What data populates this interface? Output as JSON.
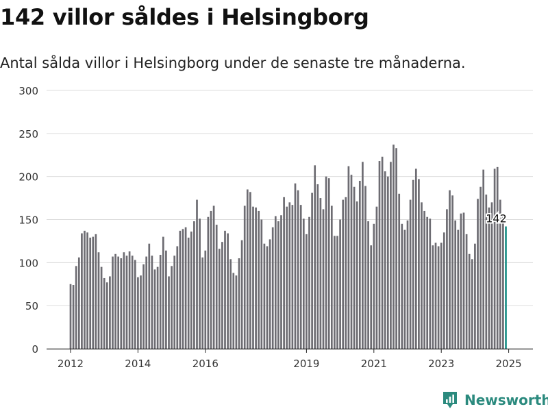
{
  "title": "142 villor såldes i Helsingborg",
  "subtitle": "Antal sålda villor i Helsingborg under de senaste tre månaderna.",
  "brand": {
    "name": "Newsworthy",
    "icon": "bar-chart-pin-icon",
    "color": "#2b8a7e"
  },
  "chart_data": {
    "type": "bar",
    "title": "142 villor såldes i Helsingborg",
    "subtitle": "Antal sålda villor i Helsingborg under de senaste tre månaderna.",
    "ylim": [
      0,
      300
    ],
    "yticks": [
      0,
      50,
      100,
      150,
      200,
      250,
      300
    ],
    "xticks": [
      {
        "label": "2012",
        "index": 0
      },
      {
        "label": "2014",
        "index": 24
      },
      {
        "label": "2016",
        "index": 48
      },
      {
        "label": "2019",
        "index": 84
      },
      {
        "label": "2021",
        "index": 108
      },
      {
        "label": "2023",
        "index": 132
      },
      {
        "label": "2025",
        "index": 156
      }
    ],
    "grid": true,
    "bar_color": "#6d6c72",
    "highlight_color": "#1f9189",
    "highlight_label": "142",
    "series": [
      {
        "values": [
          75,
          74,
          96,
          106,
          134,
          137,
          135,
          129,
          130,
          133,
          112,
          95,
          82,
          77,
          84,
          107,
          110,
          107,
          105,
          112,
          108,
          113,
          108,
          103,
          83,
          85,
          98,
          107,
          122,
          108,
          92,
          95,
          109,
          130,
          114,
          84,
          96,
          108,
          119,
          137,
          139,
          141,
          129,
          136,
          148,
          173,
          151,
          106,
          114,
          153,
          160,
          166,
          144,
          116,
          124,
          137,
          134,
          104,
          88,
          85,
          105,
          126,
          166,
          185,
          182,
          165,
          164,
          160,
          150,
          122,
          119,
          127,
          141,
          154,
          148,
          155,
          176,
          165,
          170,
          167,
          192,
          184,
          167,
          151,
          133,
          153,
          181,
          213,
          191,
          175,
          162,
          200,
          198,
          166,
          131,
          131,
          150,
          173,
          176,
          212,
          202,
          188,
          171,
          195,
          217,
          189,
          148,
          120,
          145,
          165,
          218,
          223,
          206,
          200,
          217,
          237,
          233,
          180,
          145,
          138,
          149,
          173,
          196,
          209,
          197,
          170,
          160,
          153,
          151,
          120,
          123,
          119,
          123,
          135,
          162,
          184,
          178,
          149,
          138,
          157,
          158,
          133,
          110,
          104,
          122,
          174,
          188,
          208,
          179,
          164,
          170,
          209,
          211,
          173,
          153,
          142
        ]
      }
    ]
  }
}
